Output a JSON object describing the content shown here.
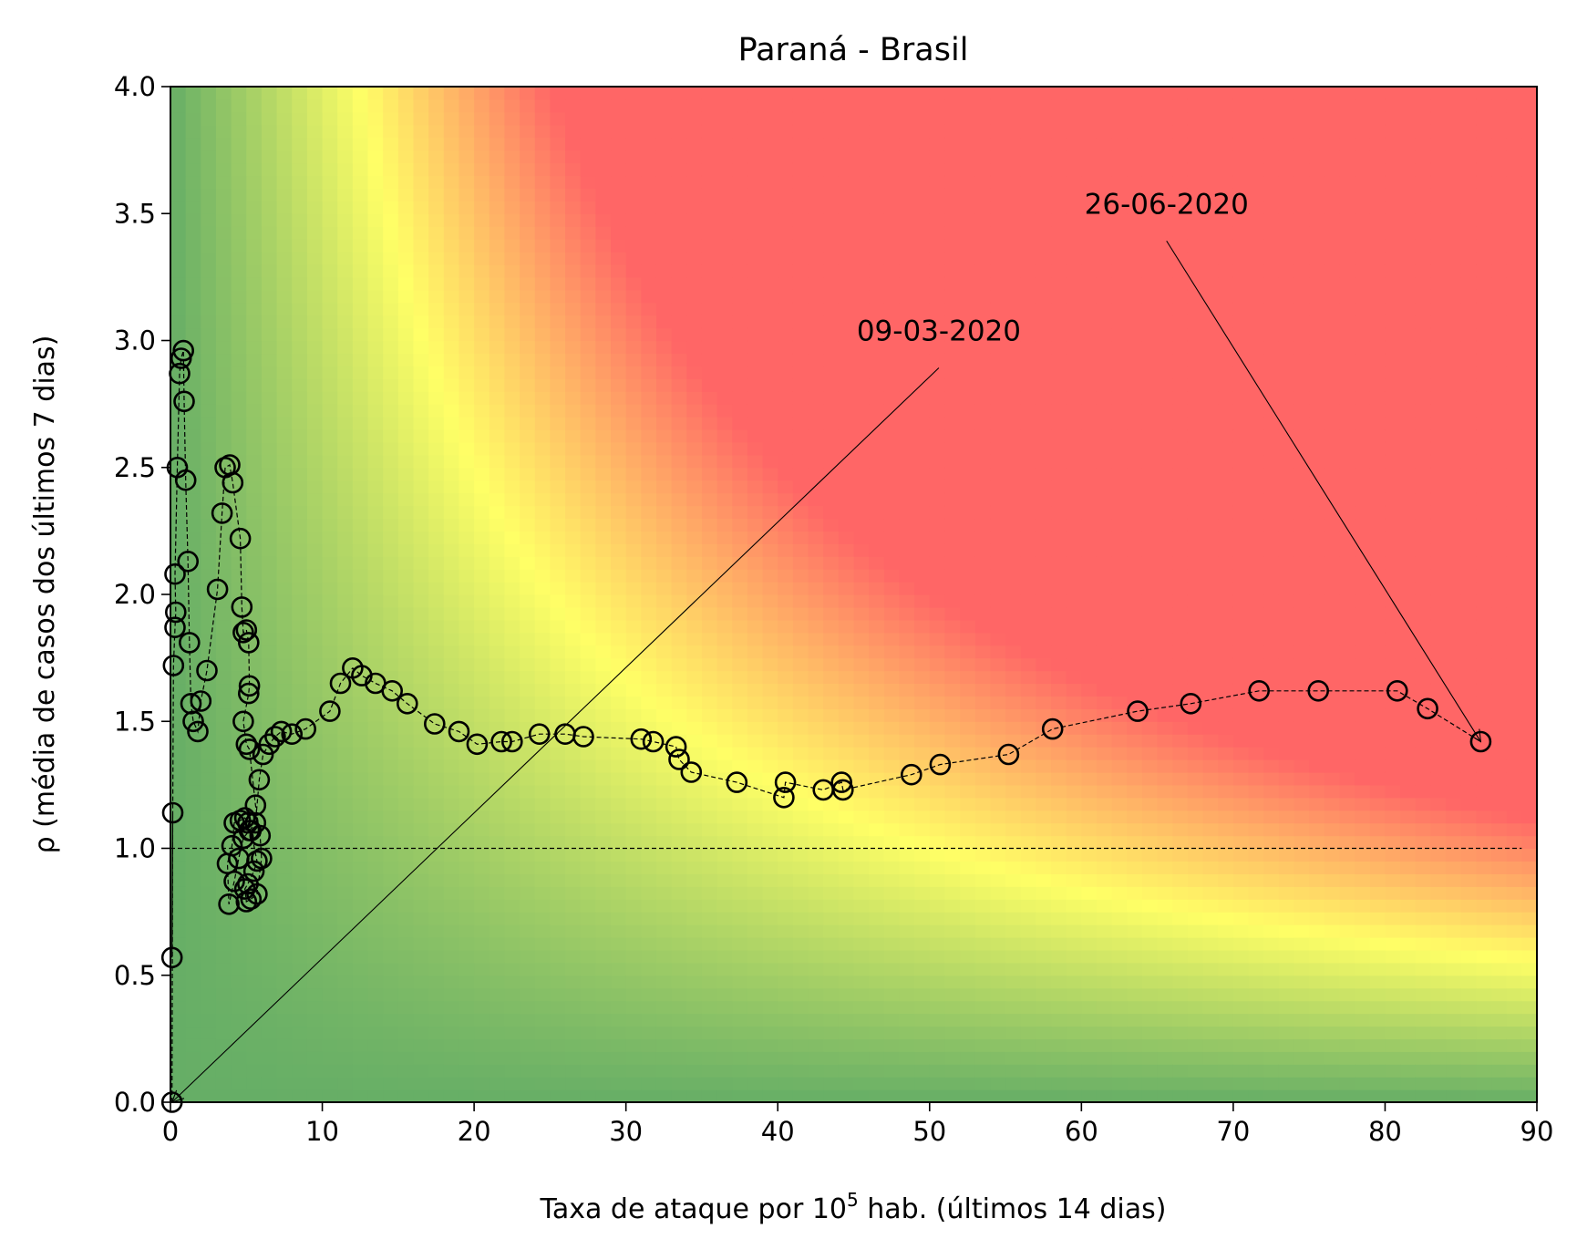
{
  "chart_data": {
    "type": "scatter",
    "title": "Paraná - Brasil",
    "xlabel": {
      "prefix": "Taxa de ataque por 10",
      "sup": "5",
      "suffix": " hab. (últimos 14 dias)"
    },
    "ylabel": "ρ (média de casos dos últimos 7 dias)",
    "xlim": [
      0,
      90
    ],
    "ylim": [
      0,
      4
    ],
    "xticks": [
      "0",
      "10",
      "20",
      "30",
      "40",
      "50",
      "60",
      "70",
      "80",
      "90"
    ],
    "yticks": [
      "0.0",
      "0.5",
      "1.0",
      "1.5",
      "2.0",
      "2.5",
      "3.0",
      "3.5",
      "4.0"
    ],
    "background": "risk heatmap: green (low) → yellow → red (high), risk grows with x·ρ",
    "colors": {
      "green": "#66ae66",
      "yellow": "#ffff66",
      "red": "#ff6666",
      "marker": "#000000"
    },
    "reference_line": {
      "y": 1.0,
      "style": "dashed",
      "x_end": 89
    },
    "series": [
      {
        "marker": "open-circle",
        "line": "dashed",
        "points": [
          [
            0.1,
            0.0
          ],
          [
            0.15,
            1.14
          ],
          [
            0.1,
            0.57
          ],
          [
            0.2,
            1.72
          ],
          [
            0.3,
            1.87
          ],
          [
            0.35,
            1.93
          ],
          [
            0.3,
            2.08
          ],
          [
            0.45,
            2.5
          ],
          [
            0.6,
            2.87
          ],
          [
            0.7,
            2.93
          ],
          [
            0.85,
            2.96
          ],
          [
            0.9,
            2.76
          ],
          [
            1.0,
            2.45
          ],
          [
            1.15,
            2.13
          ],
          [
            1.25,
            1.81
          ],
          [
            1.35,
            1.57
          ],
          [
            1.5,
            1.5
          ],
          [
            1.8,
            1.46
          ],
          [
            2.0,
            1.58
          ],
          [
            2.4,
            1.7
          ],
          [
            3.1,
            2.02
          ],
          [
            3.4,
            2.32
          ],
          [
            3.6,
            2.5
          ],
          [
            3.9,
            2.51
          ],
          [
            4.1,
            2.44
          ],
          [
            4.6,
            2.22
          ],
          [
            4.7,
            1.95
          ],
          [
            4.8,
            1.85
          ],
          [
            5.0,
            1.86
          ],
          [
            5.15,
            1.81
          ],
          [
            5.2,
            1.64
          ],
          [
            5.15,
            1.61
          ],
          [
            4.8,
            1.5
          ],
          [
            5.0,
            1.41
          ],
          [
            5.2,
            1.39
          ],
          [
            5.6,
            1.17
          ],
          [
            5.9,
            1.05
          ],
          [
            6.0,
            0.96
          ],
          [
            5.7,
            0.82
          ],
          [
            5.3,
            0.8
          ],
          [
            5.0,
            0.79
          ],
          [
            4.9,
            0.84
          ],
          [
            5.1,
            0.86
          ],
          [
            5.5,
            0.91
          ],
          [
            5.7,
            0.95
          ],
          [
            5.3,
            1.07
          ],
          [
            5.1,
            1.1
          ],
          [
            4.9,
            1.12
          ],
          [
            4.6,
            1.11
          ],
          [
            4.2,
            1.1
          ],
          [
            4.05,
            1.01
          ],
          [
            3.75,
            0.94
          ],
          [
            3.85,
            0.78
          ],
          [
            4.2,
            0.87
          ],
          [
            4.5,
            0.96
          ],
          [
            4.8,
            1.04
          ],
          [
            5.2,
            1.07
          ],
          [
            5.6,
            1.1
          ],
          [
            5.85,
            1.27
          ],
          [
            6.1,
            1.37
          ],
          [
            6.5,
            1.41
          ],
          [
            6.9,
            1.44
          ],
          [
            7.3,
            1.46
          ],
          [
            8.0,
            1.45
          ],
          [
            8.9,
            1.47
          ],
          [
            10.5,
            1.54
          ],
          [
            11.2,
            1.65
          ],
          [
            12.0,
            1.71
          ],
          [
            12.6,
            1.68
          ],
          [
            13.5,
            1.65
          ],
          [
            14.6,
            1.62
          ],
          [
            15.6,
            1.57
          ],
          [
            17.4,
            1.49
          ],
          [
            19.0,
            1.46
          ],
          [
            20.2,
            1.41
          ],
          [
            21.8,
            1.42
          ],
          [
            22.5,
            1.42
          ],
          [
            24.3,
            1.45
          ],
          [
            26.0,
            1.45
          ],
          [
            27.2,
            1.44
          ],
          [
            31.0,
            1.43
          ],
          [
            31.8,
            1.42
          ],
          [
            33.3,
            1.4
          ],
          [
            33.5,
            1.35
          ],
          [
            34.3,
            1.3
          ],
          [
            37.3,
            1.26
          ],
          [
            40.4,
            1.2
          ],
          [
            40.5,
            1.26
          ],
          [
            43.0,
            1.23
          ],
          [
            44.2,
            1.26
          ],
          [
            44.3,
            1.23
          ],
          [
            48.8,
            1.29
          ],
          [
            50.7,
            1.33
          ],
          [
            55.2,
            1.37
          ],
          [
            58.1,
            1.47
          ],
          [
            63.7,
            1.54
          ],
          [
            67.2,
            1.57
          ],
          [
            71.7,
            1.62
          ],
          [
            75.6,
            1.62
          ],
          [
            80.8,
            1.62
          ],
          [
            82.8,
            1.55
          ],
          [
            86.3,
            1.42
          ]
        ]
      }
    ],
    "annotations": [
      {
        "text": "09-03-2020",
        "target": [
          0.1,
          0.0
        ],
        "text_pos": [
          45.2,
          3.0
        ]
      },
      {
        "text": "26-06-2020",
        "target": [
          86.3,
          1.42
        ],
        "text_pos": [
          60.2,
          3.5
        ]
      }
    ]
  }
}
